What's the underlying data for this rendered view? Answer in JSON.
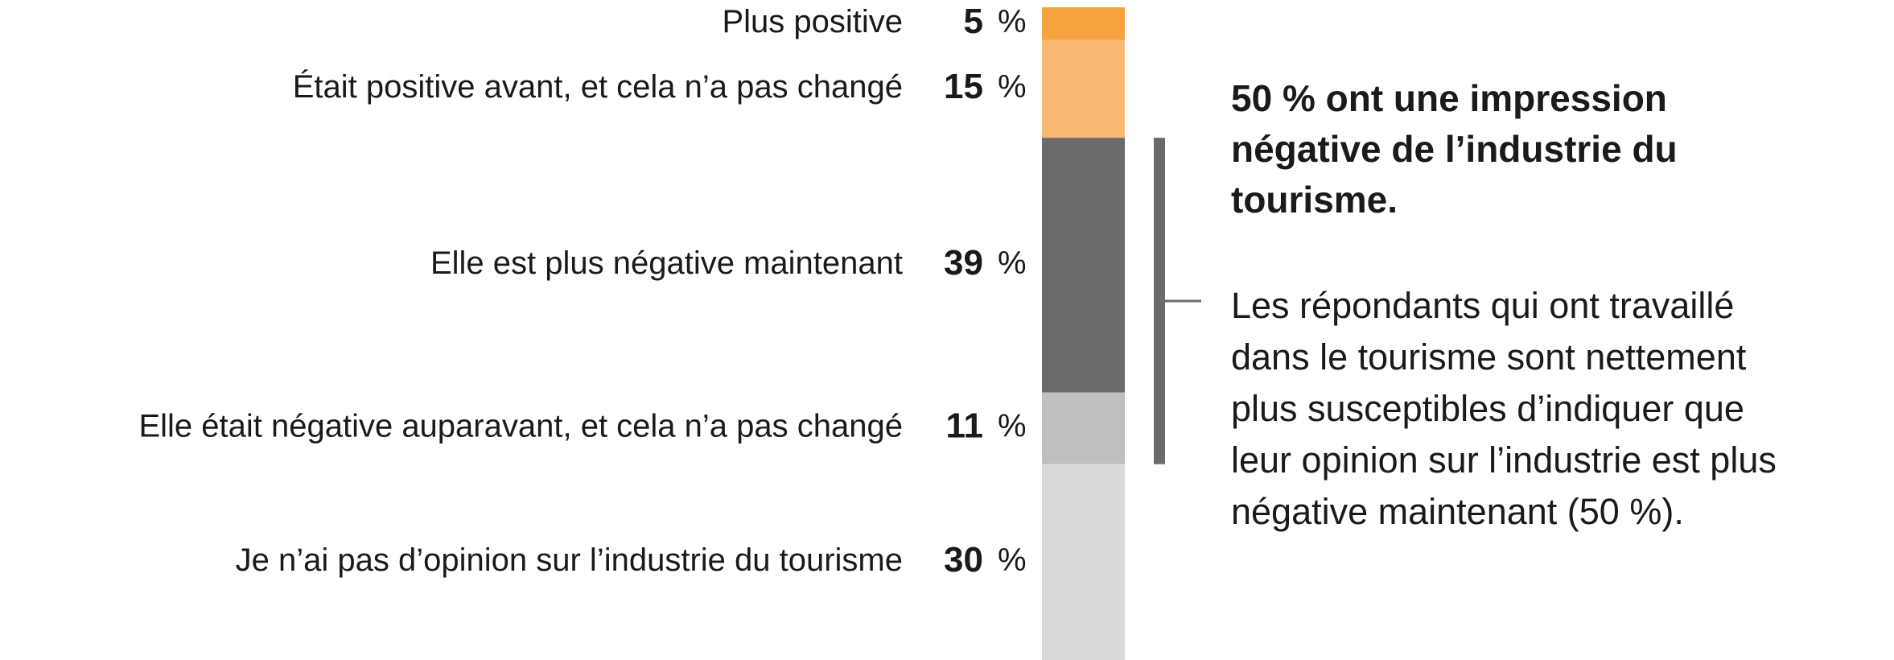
{
  "chart_data": {
    "type": "stacked-bar",
    "categories": [
      "Plus positive",
      "Était positive avant, et cela n’a pas changé",
      "Elle est plus négative maintenant",
      "Elle était négative auparavant, et cela n’a pas changé",
      "Je n’ai pas d’opinion sur l’industrie du tourisme"
    ],
    "values": [
      5,
      15,
      39,
      11,
      30
    ],
    "unit": "%",
    "colors": [
      "#f7a440",
      "#fab872",
      "#6b6a6a",
      "#bfbfbf",
      "#d9d9d9"
    ],
    "ylim": [
      0,
      100
    ],
    "annotation": {
      "title_lines": [
        "50 % ont une impression",
        "négative de l’industrie du",
        "tourisme."
      ],
      "body_lines": [
        "Les répondants qui ont travaillé",
        "dans le tourisme sont nettement",
        "plus susceptibles d’indiquer que",
        "leur opinion sur l’industrie est plus",
        "négative maintenant (50 %)."
      ]
    }
  }
}
